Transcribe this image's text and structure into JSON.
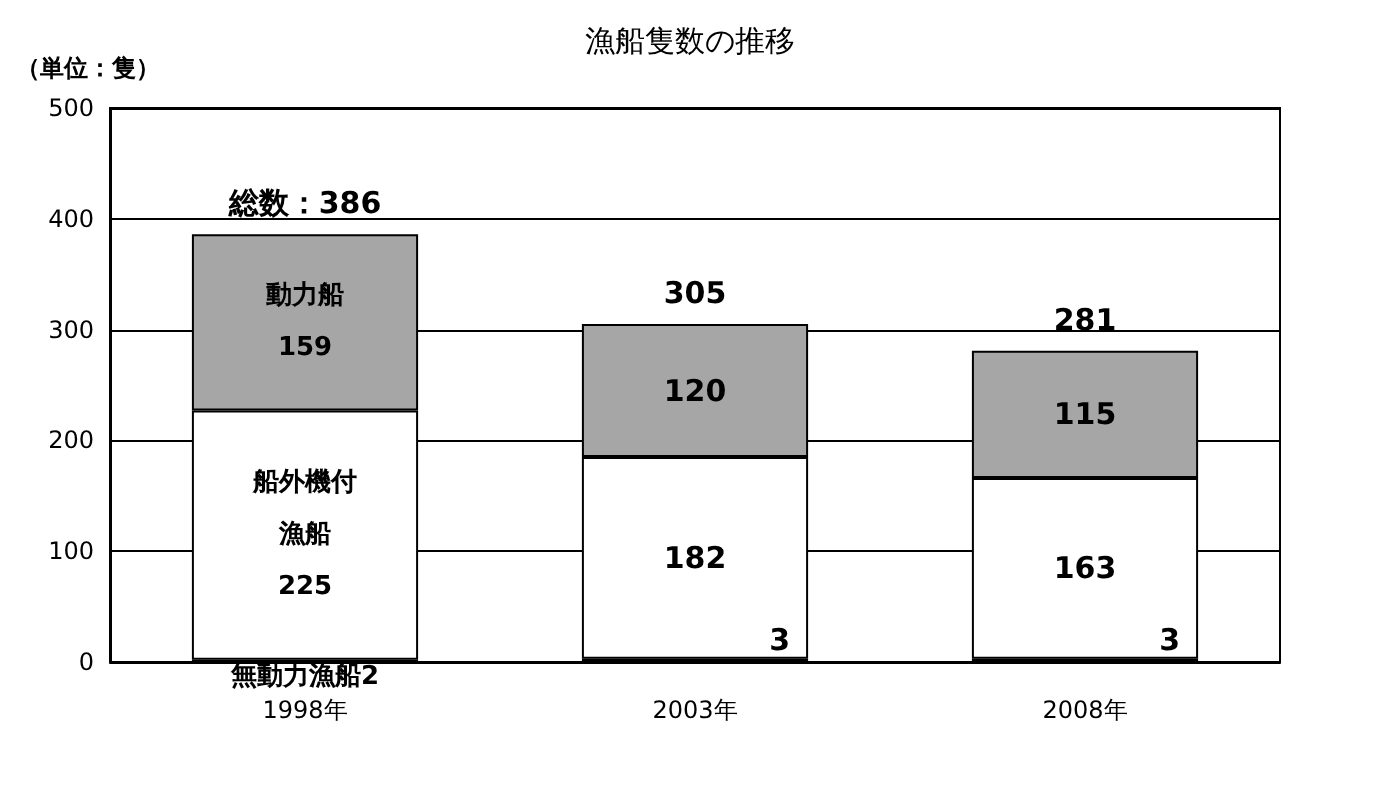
{
  "chart_data": {
    "type": "bar",
    "title": "漁船隻数の推移",
    "ylabel": "（単位：隻）",
    "stacked": true,
    "categories": [
      "1998年",
      "2003年",
      "2008年"
    ],
    "series": [
      {
        "name": "無動力漁船",
        "color": "#000000",
        "values": [
          2,
          3,
          3
        ],
        "value_labels": [
          "2",
          "3",
          "3"
        ]
      },
      {
        "name": "船外機付漁船",
        "color": "#ffffff",
        "values": [
          225,
          182,
          163
        ],
        "value_labels": [
          "225",
          "182",
          "163"
        ]
      },
      {
        "name": "動力船",
        "color": "#a6a6a6",
        "values": [
          159,
          120,
          115
        ],
        "value_labels": [
          "159",
          "120",
          "115"
        ]
      }
    ],
    "totals": [
      "総数：386",
      "305",
      "281"
    ],
    "ylim": [
      0,
      500
    ],
    "yticks": [
      0,
      100,
      200,
      300,
      400,
      500
    ],
    "grid": "y",
    "legend": false
  }
}
